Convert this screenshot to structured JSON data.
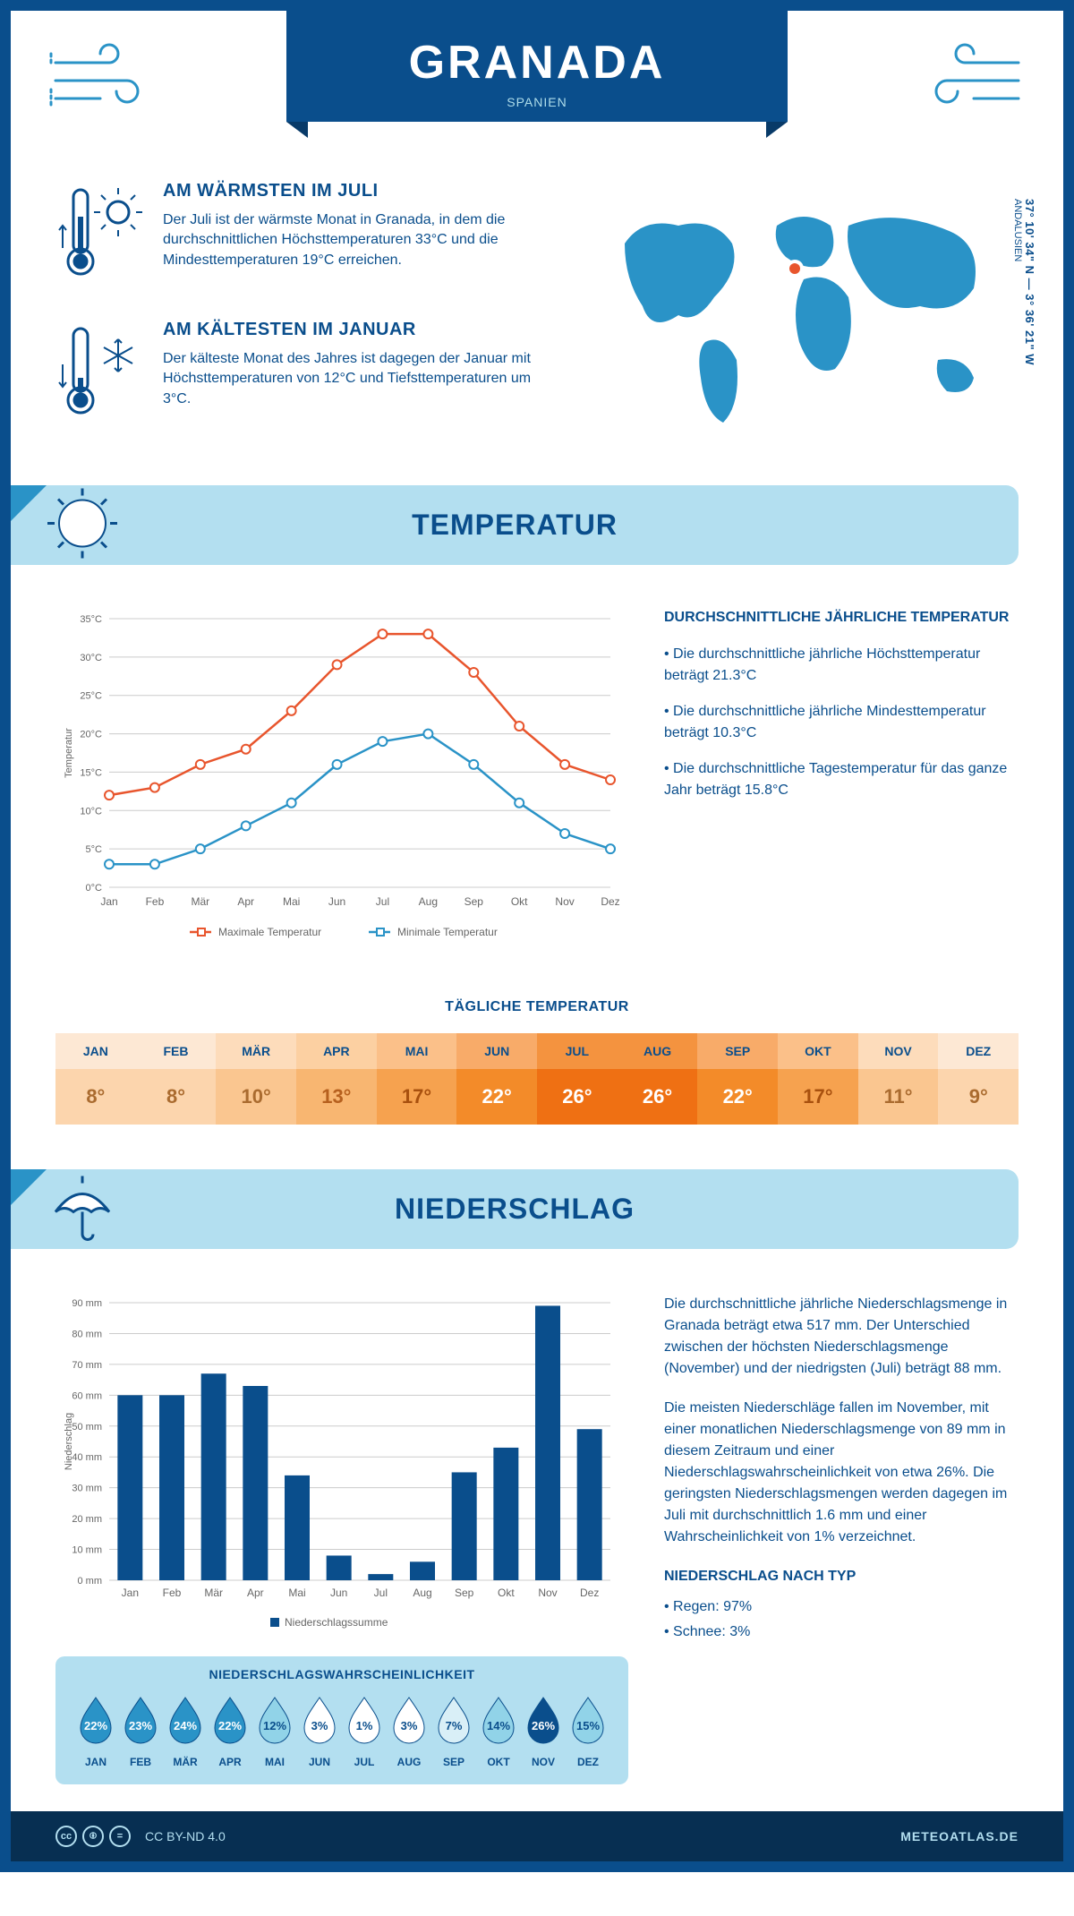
{
  "header": {
    "city": "GRANADA",
    "country": "SPANIEN",
    "region": "ANDALUSIEN",
    "coordinates": "37° 10' 34\" N — 3° 36' 21\" W"
  },
  "facts": {
    "warmest": {
      "title": "AM WÄRMSTEN IM JULI",
      "text": "Der Juli ist der wärmste Monat in Granada, in dem die durchschnittlichen Höchsttemperaturen 33°C und die Mindesttemperaturen 19°C erreichen."
    },
    "coldest": {
      "title": "AM KÄLTESTEN IM JANUAR",
      "text": "Der kälteste Monat des Jahres ist dagegen der Januar mit Höchsttemperaturen von 12°C und Tiefsttemperaturen um 3°C."
    }
  },
  "months": [
    "Jan",
    "Feb",
    "Mär",
    "Apr",
    "Mai",
    "Jun",
    "Jul",
    "Aug",
    "Sep",
    "Okt",
    "Nov",
    "Dez"
  ],
  "months_upper": [
    "JAN",
    "FEB",
    "MÄR",
    "APR",
    "MAI",
    "JUN",
    "JUL",
    "AUG",
    "SEP",
    "OKT",
    "NOV",
    "DEZ"
  ],
  "temperature": {
    "section_title": "TEMPERATUR",
    "chart": {
      "type": "line",
      "ylabel": "Temperatur",
      "ylim": [
        0,
        35
      ],
      "ytick_step": 5,
      "grid_color": "#cccccc",
      "background": "#ffffff",
      "series": [
        {
          "name": "Maximale Temperatur",
          "color": "#e8552d",
          "values": [
            12,
            13,
            16,
            18,
            23,
            29,
            33,
            33,
            28,
            21,
            16,
            14
          ]
        },
        {
          "name": "Minimale Temperatur",
          "color": "#2a93c7",
          "values": [
            3,
            3,
            5,
            8,
            11,
            16,
            19,
            20,
            16,
            11,
            7,
            5
          ]
        }
      ],
      "line_width": 2.5,
      "marker": "circle",
      "marker_size": 5
    },
    "avg_title": "DURCHSCHNITTLICHE JÄHRLICHE TEMPERATUR",
    "avg_bullets": [
      "• Die durchschnittliche jährliche Höchsttemperatur beträgt 21.3°C",
      "• Die durchschnittliche jährliche Mindesttemperatur beträgt 10.3°C",
      "• Die durchschnittliche Tagestemperatur für das ganze Jahr beträgt 15.8°C"
    ],
    "daily_title": "TÄGLICHE TEMPERATUR",
    "daily": [
      {
        "m": "JAN",
        "v": "8°",
        "hbg": "#fde8d4",
        "bg": "#fcd5ad",
        "fg": "#aa6b2f"
      },
      {
        "m": "FEB",
        "v": "8°",
        "hbg": "#fde8d4",
        "bg": "#fcd5ad",
        "fg": "#aa6b2f"
      },
      {
        "m": "MÄR",
        "v": "10°",
        "hbg": "#fddcbb",
        "bg": "#fac690",
        "fg": "#aa6b2f"
      },
      {
        "m": "APR",
        "v": "13°",
        "hbg": "#fcd0a2",
        "bg": "#f8b671",
        "fg": "#b6601e"
      },
      {
        "m": "MAI",
        "v": "17°",
        "hbg": "#fbc089",
        "bg": "#f6a24f",
        "fg": "#a8500e"
      },
      {
        "m": "JUN",
        "v": "22°",
        "hbg": "#f8ab69",
        "bg": "#f38b29",
        "fg": "#ffffff"
      },
      {
        "m": "JUL",
        "v": "26°",
        "hbg": "#f4933f",
        "bg": "#ef7013",
        "fg": "#ffffff"
      },
      {
        "m": "AUG",
        "v": "26°",
        "hbg": "#f4933f",
        "bg": "#ef7013",
        "fg": "#ffffff"
      },
      {
        "m": "SEP",
        "v": "22°",
        "hbg": "#f8ab69",
        "bg": "#f38b29",
        "fg": "#ffffff"
      },
      {
        "m": "OKT",
        "v": "17°",
        "hbg": "#fbc089",
        "bg": "#f6a24f",
        "fg": "#a8500e"
      },
      {
        "m": "NOV",
        "v": "11°",
        "hbg": "#fddcbb",
        "bg": "#fac690",
        "fg": "#aa6b2f"
      },
      {
        "m": "DEZ",
        "v": "9°",
        "hbg": "#fde8d4",
        "bg": "#fcd5ad",
        "fg": "#aa6b2f"
      }
    ]
  },
  "precipitation": {
    "section_title": "NIEDERSCHLAG",
    "chart": {
      "type": "bar",
      "ylabel": "Niederschlag",
      "ylim": [
        0,
        90
      ],
      "ytick_step": 10,
      "grid_color": "#cccccc",
      "bar_color": "#0a4e8c",
      "legend": "Niederschlagssumme",
      "values": [
        60,
        60,
        67,
        63,
        34,
        8,
        2,
        6,
        35,
        43,
        89,
        49
      ]
    },
    "text1": "Die durchschnittliche jährliche Niederschlagsmenge in Granada beträgt etwa 517 mm. Der Unterschied zwischen der höchsten Niederschlagsmenge (November) und der niedrigsten (Juli) beträgt 88 mm.",
    "text2": "Die meisten Niederschläge fallen im November, mit einer monatlichen Niederschlagsmenge von 89 mm in diesem Zeitraum und einer Niederschlagswahrscheinlichkeit von etwa 26%. Die geringsten Niederschlagsmengen werden dagegen im Juli mit durchschnittlich 1.6 mm und einer Wahrscheinlichkeit von 1% verzeichnet.",
    "prob_title": "NIEDERSCHLAGSWAHRSCHEINLICHKEIT",
    "probability": [
      {
        "v": "22%",
        "fill": "#2a93c7",
        "txt": "#ffffff"
      },
      {
        "v": "23%",
        "fill": "#2a93c7",
        "txt": "#ffffff"
      },
      {
        "v": "24%",
        "fill": "#2a93c7",
        "txt": "#ffffff"
      },
      {
        "v": "22%",
        "fill": "#2a93c7",
        "txt": "#ffffff"
      },
      {
        "v": "12%",
        "fill": "#91d3e8",
        "txt": "#0a4e8c"
      },
      {
        "v": "3%",
        "fill": "#ffffff",
        "txt": "#0a4e8c"
      },
      {
        "v": "1%",
        "fill": "#ffffff",
        "txt": "#0a4e8c"
      },
      {
        "v": "3%",
        "fill": "#ffffff",
        "txt": "#0a4e8c"
      },
      {
        "v": "7%",
        "fill": "#d9eff7",
        "txt": "#0a4e8c"
      },
      {
        "v": "14%",
        "fill": "#91d3e8",
        "txt": "#0a4e8c"
      },
      {
        "v": "26%",
        "fill": "#0a4e8c",
        "txt": "#ffffff"
      },
      {
        "v": "15%",
        "fill": "#91d3e8",
        "txt": "#0a4e8c"
      }
    ],
    "by_type_title": "NIEDERSCHLAG NACH TYP",
    "by_type": [
      "• Regen: 97%",
      "• Schnee: 3%"
    ]
  },
  "footer": {
    "license": "CC BY-ND 4.0",
    "site": "METEOATLAS.DE"
  },
  "colors": {
    "primary": "#0a4e8c",
    "light_blue": "#b3dff0",
    "mid_blue": "#2a93c7",
    "orange": "#e8552d"
  }
}
